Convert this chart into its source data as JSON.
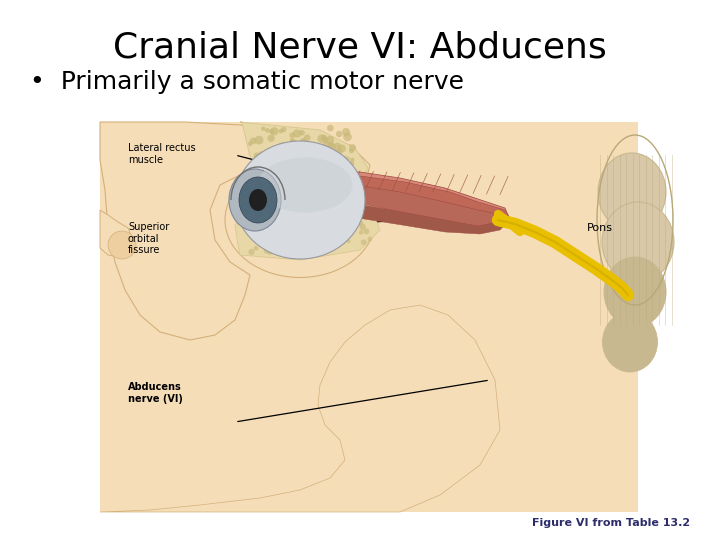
{
  "title": "Cranial Nerve VI: Abducens",
  "bullet": "•  Primarily a somatic motor nerve",
  "caption": "Figure VI from Table 13.2",
  "bg_color": "#ffffff",
  "title_color": "#000000",
  "title_fontsize": 26,
  "bullet_fontsize": 18,
  "caption_fontsize": 8,
  "caption_color": "#2d2d6b",
  "skin_light": "#f5ddb8",
  "skin_mid": "#edcfa0",
  "skin_dark": "#d4b07a",
  "skin_shadow": "#c8a060",
  "bone_light": "#e8d8a8",
  "bone_mid": "#d8c890",
  "bone_dark": "#c8b878",
  "muscle_light": "#d88878",
  "muscle_mid": "#c06858",
  "muscle_dark": "#a04840",
  "muscle_line": "#985040",
  "eye_sclera": "#d8dce0",
  "eye_cornea": "#b0b8c0",
  "eye_iris": "#506878",
  "eye_pupil": "#202020",
  "nerve_yellow": "#e8c000",
  "nerve_dark": "#c8a000",
  "pons_light": "#d8c8a8",
  "pons_mid": "#c8b890",
  "pons_dark": "#b8a878",
  "label_color": "#000000",
  "label_bold_color": "#000000",
  "label_fs": 7,
  "line_color": "#000000"
}
